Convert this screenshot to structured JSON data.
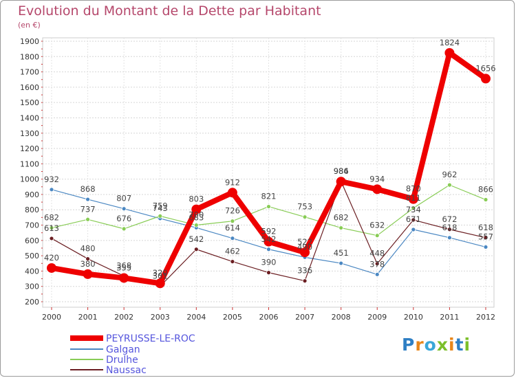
{
  "header": {
    "title": "Evolution du Montant de la Dette par Habitant",
    "subtitle": "(en €)"
  },
  "logo": {
    "text": "Proxiti",
    "letters": [
      "P",
      "r",
      "o",
      "x",
      "i",
      "t",
      "i"
    ],
    "colors": [
      "#2e7fc4",
      "#e8861a",
      "#3aa7d9",
      "#7cbf2a",
      "#e8861a",
      "#2e7fc4",
      "#7cbf2a"
    ]
  },
  "chart_data": {
    "type": "line",
    "title": "Evolution du Montant de la Dette par Habitant",
    "subtitle": "(en €)",
    "categories": [
      "2000",
      "2001",
      "2002",
      "2003",
      "2004",
      "2005",
      "2006",
      "2007",
      "2008",
      "2009",
      "2010",
      "2011",
      "2012"
    ],
    "ylim": [
      200,
      1900
    ],
    "yticks": [
      200,
      300,
      400,
      500,
      600,
      700,
      800,
      900,
      1000,
      1100,
      1200,
      1300,
      1400,
      1500,
      1600,
      1700,
      1800,
      1900
    ],
    "grid": true,
    "series": [
      {
        "name": "PEYRUSSE-LE-ROC",
        "color": "#ee0000",
        "values": [
          420,
          380,
          355,
          320,
          803,
          912,
          592,
          522,
          984,
          934,
          870,
          1824,
          1656
        ]
      },
      {
        "name": "Galgan",
        "color": "#4a87c2",
        "values": [
          932,
          868,
          807,
          743,
          683,
          614,
          542,
          490,
          451,
          378,
          671,
          618,
          557
        ]
      },
      {
        "name": "Drulhe",
        "color": "#88cc55",
        "values": [
          682,
          737,
          676,
          759,
          700,
          726,
          821,
          753,
          682,
          632,
          811,
          962,
          866
        ]
      },
      {
        "name": "Naussac",
        "color": "#6b1e22",
        "values": [
          613,
          480,
          368,
          301,
          542,
          462,
          390,
          336,
          986,
          448,
          734,
          672,
          618
        ]
      }
    ],
    "labels": [
      {
        "series": 0,
        "texts": [
          "420",
          "380",
          "355",
          "320",
          "803",
          "912",
          "592",
          "522",
          "984",
          "934",
          "870",
          "1824",
          "1656"
        ]
      },
      {
        "series": 1,
        "texts": [
          "932",
          "868",
          "807",
          "743",
          "683",
          "614",
          "542",
          "490",
          "451",
          "378",
          "671",
          "618",
          "557"
        ]
      },
      {
        "series": 2,
        "texts": [
          "682",
          "737",
          "676",
          "759",
          "700",
          "726",
          "821",
          "753",
          "682",
          "632",
          "811",
          "962",
          "866"
        ]
      },
      {
        "series": 3,
        "texts": [
          "613",
          "480",
          "368",
          "301",
          "542",
          "462",
          "390",
          "336",
          "986",
          "448",
          "734",
          "672",
          "618"
        ]
      }
    ],
    "legend": {
      "placement": "bottom-left",
      "entries": [
        "PEYRUSSE-LE-ROC",
        "Galgan",
        "Drulhe",
        "Naussac"
      ]
    }
  }
}
